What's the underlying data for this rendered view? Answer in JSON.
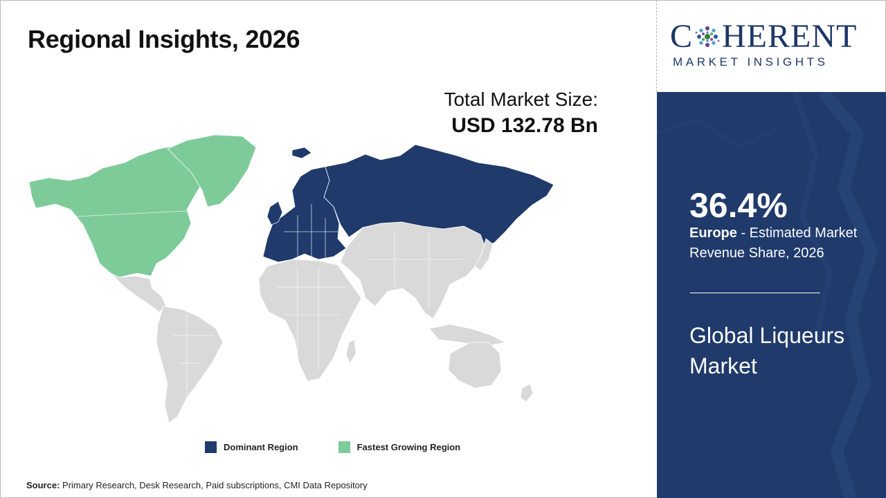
{
  "title": "Regional Insights, 2026",
  "market_size": {
    "label": "Total Market Size:",
    "value": "USD 132.78 Bn"
  },
  "map": {
    "regions": [
      {
        "name": "North America",
        "status": "fastest-growing",
        "color": "#7ecb9a"
      },
      {
        "name": "Europe",
        "status": "dominant",
        "color": "#1f3a6b"
      },
      {
        "name": "Russia",
        "status": "dominant",
        "color": "#1f3a6b"
      },
      {
        "name": "Latin America",
        "status": "other",
        "color": "#d9d9d9"
      },
      {
        "name": "Africa",
        "status": "other",
        "color": "#d9d9d9"
      },
      {
        "name": "Middle East",
        "status": "other",
        "color": "#d9d9d9"
      },
      {
        "name": "Asia Pacific",
        "status": "other",
        "color": "#d9d9d9"
      },
      {
        "name": "Oceania",
        "status": "other",
        "color": "#d9d9d9"
      }
    ]
  },
  "legend": {
    "dominant": {
      "label": "Dominant Region",
      "color": "#1f3a6b"
    },
    "fastest": {
      "label": "Fastest Growing Region",
      "color": "#7ecb9a"
    }
  },
  "source": {
    "prefix": "Source:",
    "text": " Primary Research, Desk Research, Paid subscriptions, CMI Data Repository"
  },
  "logo": {
    "word_left": "C",
    "word_right": "HERENT",
    "tagline": "MARKET INSIGHTS",
    "color": "#1c3667"
  },
  "panel": {
    "percentage": "36.4%",
    "region": "Europe",
    "description": " - Estimated Market Revenue Share, 2026",
    "market_name": "Global Liqueurs Market",
    "background": "#1f3a6b"
  }
}
